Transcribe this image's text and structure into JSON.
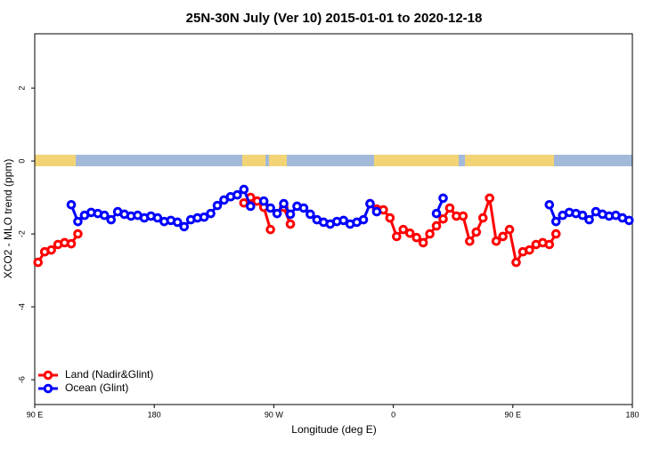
{
  "chart_data": {
    "type": "line",
    "title": "25N-30N July (Ver 10)   2015-01-01 to 2020-12-18",
    "xlabel": "Longitude (deg E)",
    "ylabel": "XCO2 - MLO trend (ppm)",
    "xlim": [
      90,
      540
    ],
    "ylim": [
      -6.68,
      3.49
    ],
    "xticks": [
      {
        "value": 90,
        "label": "90 E"
      },
      180,
      {
        "value": 270,
        "label": "90 W"
      },
      {
        "value": 360,
        "label": "0"
      },
      {
        "value": 450,
        "label": "90 E"
      },
      {
        "value": 540,
        "label": "180"
      }
    ],
    "yticks": [
      -6,
      -4,
      -2,
      0,
      2
    ],
    "legend": "bottom-left",
    "x": [
      92.5,
      97.5,
      102.5,
      107.5,
      112.5,
      117.5,
      122.5,
      127.5,
      132.5,
      137.5,
      142.5,
      147.5,
      152.5,
      157.5,
      162.5,
      167.5,
      172.5,
      177.5,
      182.5,
      187.5,
      192.5,
      197.5,
      202.5,
      207.5,
      212.5,
      217.5,
      222.5,
      227.5,
      232.5,
      237.5,
      242.5,
      247.5,
      252.5,
      257.5,
      262.5,
      267.5,
      272.5,
      277.5,
      282.5,
      287.5,
      292.5,
      297.5,
      302.5,
      307.5,
      312.5,
      317.5,
      322.5,
      327.5,
      332.5,
      337.5,
      342.5,
      347.5,
      352.5,
      357.5,
      362.5,
      367.5,
      372.5,
      377.5,
      382.5,
      387.5,
      392.5,
      397.5,
      402.5,
      407.5,
      412.5,
      417.5,
      422.5,
      427.5,
      432.5,
      437.5,
      442.5,
      447.5,
      452.5,
      457.5,
      462.5,
      467.5,
      472.5,
      477.5,
      482.5,
      487.5,
      492.5,
      497.5,
      502.5,
      507.5,
      512.5,
      517.5,
      522.5,
      527.5,
      532.5,
      537.5
    ],
    "series": [
      {
        "name": "Land (Nadir&Glint)",
        "color": "#ff0000",
        "values": [
          -2.78,
          -2.49,
          -2.44,
          -2.29,
          -2.24,
          -2.27,
          -2.0,
          null,
          null,
          null,
          null,
          null,
          null,
          null,
          null,
          null,
          null,
          null,
          null,
          null,
          null,
          null,
          null,
          null,
          null,
          null,
          null,
          null,
          null,
          null,
          null,
          -1.15,
          -1.0,
          -1.1,
          -1.27,
          -1.88,
          null,
          -1.27,
          -1.73,
          null,
          null,
          null,
          null,
          null,
          null,
          null,
          null,
          null,
          null,
          null,
          -1.17,
          -1.32,
          -1.34,
          -1.56,
          -2.07,
          -1.88,
          -1.98,
          -2.1,
          -2.24,
          -2.0,
          -1.78,
          -1.59,
          -1.29,
          -1.51,
          -1.51,
          -2.2,
          -1.95,
          -1.56,
          -1.02,
          -2.2,
          -2.07,
          -1.88,
          -2.78,
          -2.49,
          -2.44,
          -2.29,
          -2.24,
          -2.29,
          -2.0,
          null,
          null,
          null,
          null,
          null,
          null,
          null,
          null,
          null,
          null,
          null
        ]
      },
      {
        "name": "Ocean (Glint)",
        "color": "#0000ff",
        "values": [
          null,
          null,
          null,
          null,
          null,
          -1.2,
          -1.66,
          -1.49,
          -1.41,
          -1.44,
          -1.49,
          -1.61,
          -1.39,
          -1.46,
          -1.51,
          -1.49,
          -1.56,
          -1.51,
          -1.56,
          -1.66,
          -1.63,
          -1.68,
          -1.8,
          -1.61,
          -1.56,
          -1.54,
          -1.44,
          -1.22,
          -1.07,
          -0.98,
          -0.93,
          -0.78,
          -1.24,
          null,
          -1.1,
          -1.29,
          -1.44,
          -1.17,
          -1.46,
          -1.24,
          -1.29,
          -1.46,
          -1.61,
          -1.68,
          -1.73,
          -1.66,
          -1.63,
          -1.73,
          -1.68,
          -1.61,
          -1.17,
          -1.39,
          null,
          null,
          null,
          null,
          null,
          null,
          null,
          null,
          -1.44,
          -1.02,
          null,
          null,
          null,
          null,
          null,
          null,
          null,
          null,
          null,
          null,
          null,
          null,
          null,
          null,
          null,
          -1.2,
          -1.66,
          -1.49,
          -1.41,
          -1.44,
          -1.49,
          -1.61,
          -1.39,
          -1.46,
          -1.51,
          -1.49,
          -1.56,
          -1.63
        ]
      }
    ]
  }
}
